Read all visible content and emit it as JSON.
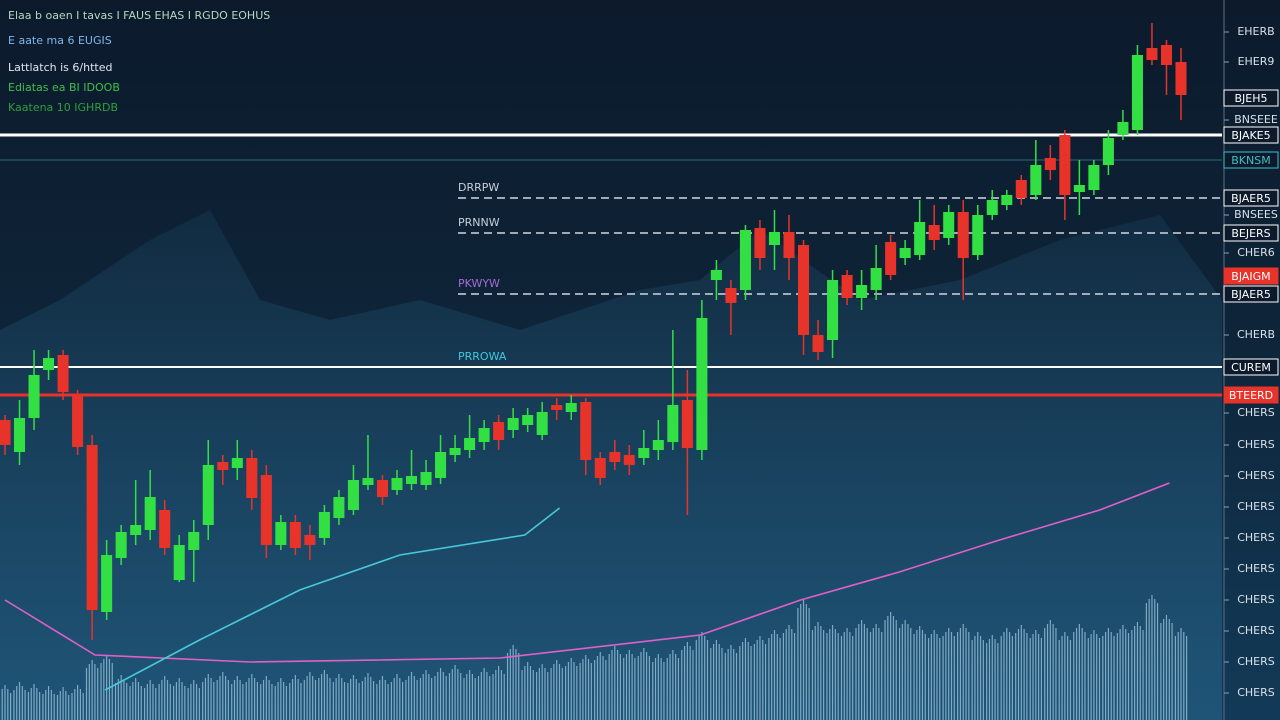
{
  "chart_data": {
    "type": "candlestick",
    "header": [
      {
        "text": "Elaa b oaen I tavas I FAUS EHAS I RGDO EOHUS",
        "color": "#b8d8c0"
      },
      {
        "text": "E aate ma 6  EUGIS",
        "color": "#7fb8e8"
      },
      {
        "text": "Lattlatch is  6/htted",
        "color": "#e0e6ee"
      },
      {
        "text": "Ediatas ea BI  IDOOB",
        "color": "#3fbf4a"
      },
      {
        "text": "Kaatena 10  IGHRDB",
        "color": "#2f9f3a"
      }
    ],
    "xlim": [
      0,
      81
    ],
    "ylim": [
      0,
      720
    ],
    "up_color": "#33e044",
    "down_color": "#e8332a",
    "candles": {
      "open": [
        300,
        268,
        302,
        350,
        365,
        325,
        275,
        108,
        162,
        185,
        190,
        210,
        140,
        170,
        195,
        258,
        252,
        262,
        245,
        175,
        198,
        185,
        182,
        202,
        210,
        235,
        240,
        230,
        236,
        235,
        242,
        265,
        270,
        278,
        298,
        290,
        295,
        285,
        315,
        308,
        318,
        262,
        268,
        265,
        262,
        270,
        278,
        320,
        270,
        440,
        432,
        430,
        492,
        475,
        488,
        475,
        385,
        380,
        445,
        422,
        430,
        478,
        462,
        465,
        495,
        482,
        508,
        465,
        505,
        515,
        540,
        525,
        562,
        585,
        528,
        530,
        555,
        585,
        590,
        672,
        675,
        658
      ],
      "close": [
        275,
        302,
        345,
        362,
        328,
        273,
        110,
        165,
        188,
        195,
        223,
        172,
        175,
        188,
        255,
        250,
        262,
        222,
        175,
        198,
        172,
        175,
        208,
        223,
        240,
        242,
        223,
        242,
        244,
        248,
        268,
        272,
        282,
        292,
        280,
        302,
        305,
        308,
        310,
        317,
        260,
        242,
        258,
        255,
        272,
        280,
        315,
        272,
        402,
        450,
        417,
        490,
        462,
        488,
        462,
        385,
        368,
        440,
        422,
        435,
        452,
        445,
        472,
        498,
        480,
        508,
        462,
        505,
        520,
        525,
        522,
        555,
        550,
        525,
        535,
        555,
        582,
        598,
        665,
        660,
        655,
        625
      ],
      "high": [
        305,
        320,
        370,
        370,
        370,
        330,
        285,
        180,
        195,
        240,
        250,
        220,
        185,
        200,
        280,
        265,
        280,
        270,
        255,
        205,
        205,
        195,
        215,
        230,
        255,
        285,
        245,
        250,
        270,
        260,
        285,
        285,
        305,
        300,
        305,
        312,
        312,
        318,
        322,
        325,
        322,
        268,
        280,
        275,
        290,
        300,
        390,
        350,
        420,
        460,
        440,
        495,
        500,
        510,
        505,
        480,
        400,
        450,
        450,
        450,
        475,
        485,
        480,
        520,
        515,
        515,
        520,
        515,
        530,
        530,
        545,
        580,
        575,
        590,
        560,
        560,
        590,
        610,
        675,
        697,
        680,
        672
      ],
      "low": [
        265,
        255,
        290,
        340,
        320,
        265,
        80,
        100,
        155,
        175,
        180,
        165,
        138,
        138,
        180,
        235,
        240,
        210,
        162,
        170,
        165,
        160,
        175,
        195,
        205,
        230,
        215,
        225,
        230,
        230,
        236,
        258,
        262,
        270,
        270,
        282,
        288,
        280,
        300,
        300,
        245,
        235,
        250,
        245,
        255,
        260,
        270,
        205,
        260,
        420,
        385,
        420,
        450,
        450,
        440,
        365,
        360,
        362,
        415,
        410,
        420,
        440,
        455,
        460,
        470,
        475,
        420,
        460,
        500,
        510,
        515,
        520,
        540,
        500,
        505,
        525,
        545,
        580,
        585,
        655,
        625,
        600
      ]
    },
    "volume": {
      "color": "#9ec8e0",
      "ylim": [
        0,
        720
      ],
      "values": [
        35,
        38,
        36,
        34,
        33,
        35,
        60,
        65,
        45,
        42,
        40,
        44,
        42,
        40,
        46,
        48,
        44,
        46,
        44,
        42,
        45,
        48,
        50,
        46,
        45,
        47,
        44,
        46,
        48,
        50,
        52,
        55,
        50,
        52,
        54,
        75,
        58,
        56,
        60,
        62,
        65,
        68,
        74,
        70,
        72,
        66,
        70,
        78,
        88,
        80,
        75,
        82,
        84,
        90,
        95,
        120,
        98,
        95,
        92,
        100,
        96,
        108,
        100,
        94,
        90,
        92,
        96,
        88,
        85,
        92,
        95,
        90,
        100,
        88,
        96,
        90,
        92,
        95,
        98,
        125,
        105,
        92
      ]
    },
    "series": [
      {
        "color": "#e060c8",
        "x": [
          0,
          6.2,
          16.9,
          34.1,
          47.9,
          54.8,
          61.6,
          68.5,
          75.4,
          80.2
        ],
        "values": [
          120,
          65,
          58,
          62,
          85,
          120,
          148,
          180,
          210,
          237
        ]
      },
      {
        "color": "#48c8d8",
        "x": [
          6.9,
          13.4,
          20.3,
          27.2,
          35.8,
          38.2
        ],
        "values": [
          30,
          80,
          130,
          165,
          185,
          212
        ]
      }
    ],
    "yticks": [
      {
        "value": 688,
        "label": "EHERB"
      },
      {
        "value": 658,
        "label": "EHER9"
      },
      {
        "value": 600,
        "label": "BNSEEE"
      },
      {
        "value": 505,
        "label": "BNSEES"
      },
      {
        "value": 467,
        "label": "CHER6"
      },
      {
        "value": 385,
        "label": "CHERB"
      },
      {
        "value": 307,
        "label": "CHERS"
      },
      {
        "value": 275,
        "label": "CHERS"
      },
      {
        "value": 244,
        "label": "CHERS"
      },
      {
        "value": 213,
        "label": "CHERS"
      },
      {
        "value": 182,
        "label": "CHERS"
      },
      {
        "value": 151,
        "label": "CHERS"
      },
      {
        "value": 120,
        "label": "CHERS"
      },
      {
        "value": 89,
        "label": "CHERS"
      },
      {
        "value": 58,
        "label": "CHERS"
      },
      {
        "value": 27,
        "label": "CHERS"
      }
    ],
    "levels": [
      {
        "value": 622,
        "line": false,
        "tag": "BJEH5",
        "tag_color": "#ffffff"
      },
      {
        "value": 585,
        "line": true,
        "color": "#ffffff",
        "width": 3,
        "dash": false,
        "tag": "BJAKE5",
        "tag_color": "#ffffff"
      },
      {
        "value": 560,
        "line": true,
        "color": "#2a6878",
        "width": 1,
        "dash": false,
        "tag": "BKNSM",
        "tag_color": "#3fc0c8"
      },
      {
        "value": 522,
        "line": true,
        "color": "#d0d8e0",
        "width": 1.5,
        "dash": true,
        "label": "DRRPW",
        "label_color": "#c8d0d8",
        "tag": "BJAER5",
        "tag_color": "#ffffff"
      },
      {
        "value": 487,
        "line": true,
        "color": "#d0d8e0",
        "width": 1.5,
        "dash": true,
        "label": "PRNNW",
        "label_color": "#c8d0d8",
        "tag": "BEJERS",
        "tag_color": "#ffffff"
      },
      {
        "value": 444,
        "line": false,
        "tag": "BJAIGM",
        "tag_color": "#e8332a"
      },
      {
        "value": 426,
        "line": true,
        "color": "#d0d8e0",
        "width": 1.5,
        "dash": true,
        "label": "PKWYW",
        "label_color": "#a868d8",
        "tag": "BJAER5",
        "tag_color": "#ffffff"
      },
      {
        "value": 353,
        "line": true,
        "color": "#ffffff",
        "width": 2,
        "dash": false,
        "label": "PRROWA",
        "label_color": "#40c8e0",
        "tag": "CUREM",
        "tag_color": "#ffffff"
      },
      {
        "value": 325,
        "line": true,
        "color": "#e8332a",
        "width": 3,
        "dash": false,
        "tag": "BTEERD",
        "tag_color": "#e8332a"
      }
    ]
  }
}
